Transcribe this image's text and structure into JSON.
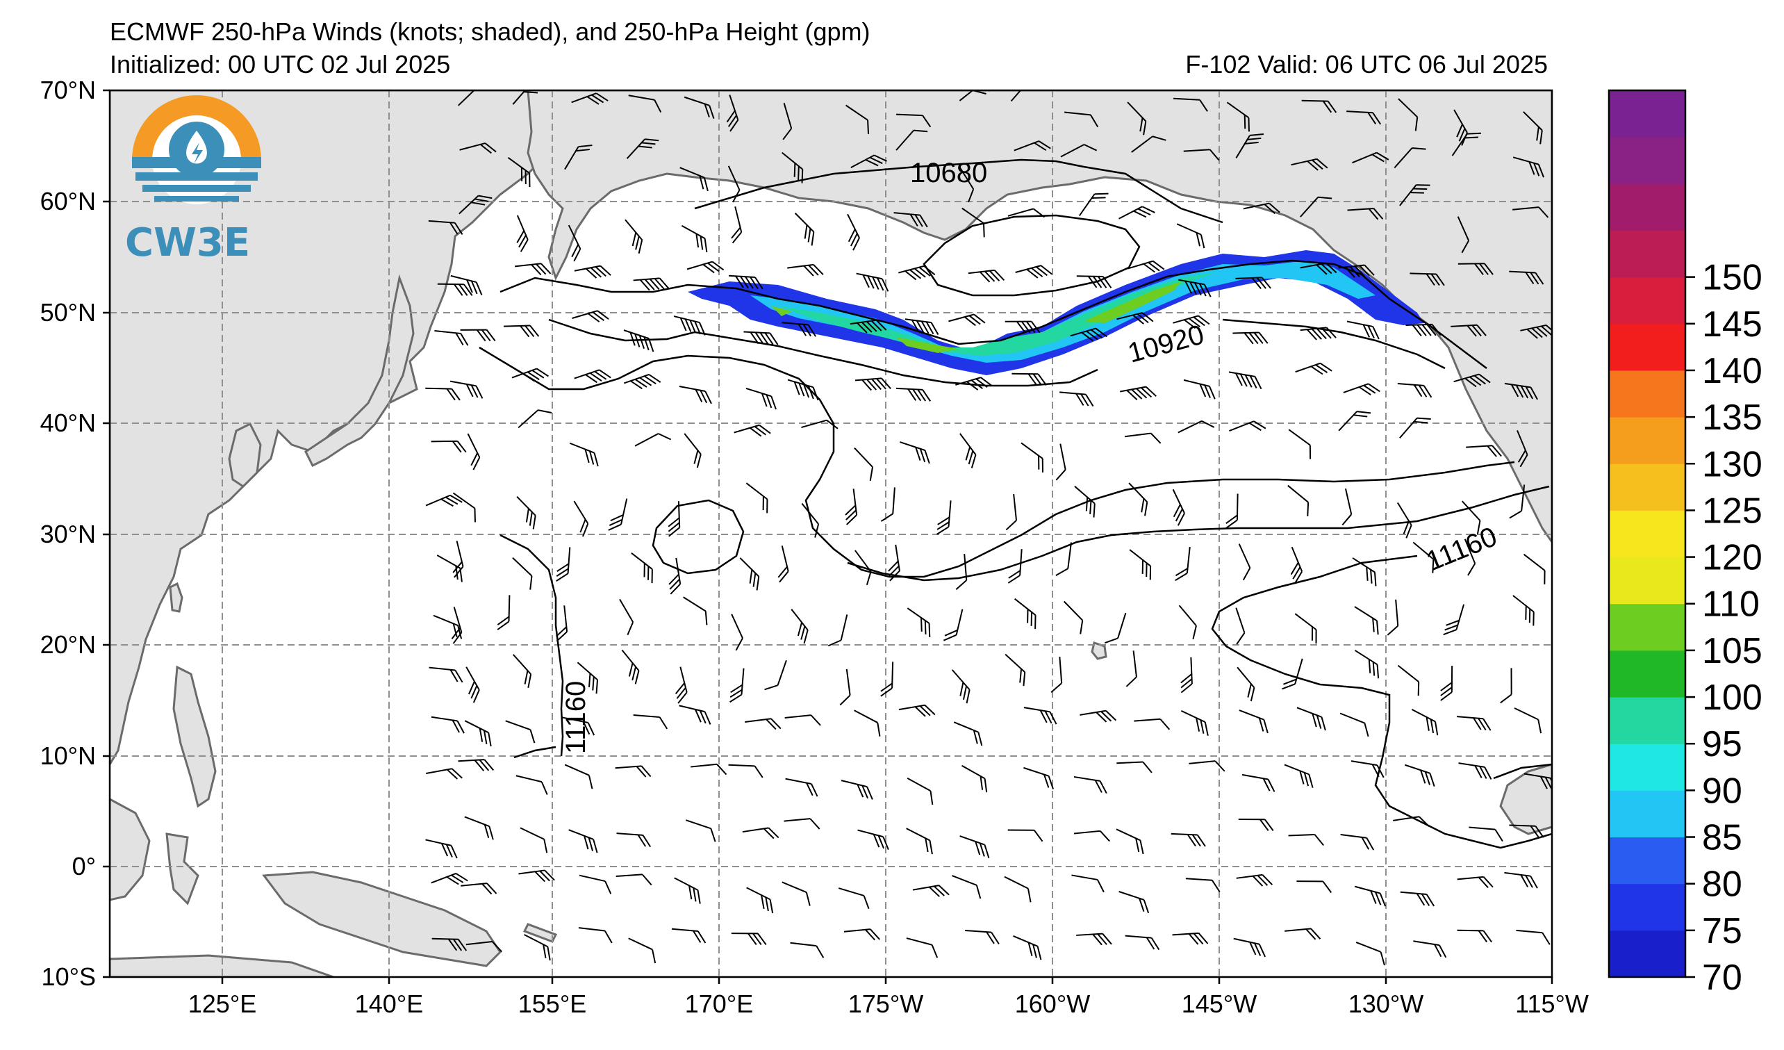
{
  "header": {
    "title": "ECMWF 250-hPa Winds (knots; shaded), and 250-hPa Height (gpm)",
    "initialized": "Initialized: 00 UTC 02 Jul 2025",
    "valid": "F-102  Valid: 06 UTC 06 Jul 2025"
  },
  "logo": {
    "text": "CW3E",
    "icon": "water-drop-logo-icon"
  },
  "axes": {
    "lat_labels": [
      "70°N",
      "60°N",
      "50°N",
      "40°N",
      "30°N",
      "20°N",
      "10°N",
      "0°",
      "10°S"
    ],
    "lon_labels": [
      "125°E",
      "140°E",
      "155°E",
      "170°E",
      "175°W",
      "160°W",
      "145°W",
      "130°W",
      "115°W"
    ],
    "lat_range": [
      -10,
      70
    ],
    "lon_range_deg_east": [
      110,
      245
    ],
    "gridlines": true
  },
  "contour_labels": [
    "10680",
    "10920",
    "11160",
    "11160"
  ],
  "colorbar": {
    "label_values": [
      "70",
      "75",
      "80",
      "85",
      "90",
      "95",
      "100",
      "105",
      "110",
      "120",
      "125",
      "130",
      "135",
      "140",
      "145",
      "150"
    ],
    "colors": [
      "#1a1fcc",
      "#2034e8",
      "#2a5cf2",
      "#21c6f5",
      "#1fe7e2",
      "#22d8a0",
      "#21b827",
      "#6dcd20",
      "#e8e81d",
      "#f7e51d",
      "#f5c01d",
      "#f59e1d",
      "#f5761d",
      "#f21d1d",
      "#d81d3d",
      "#bd1d55",
      "#a11d6c",
      "#8a2185",
      "#7b2293"
    ]
  },
  "colors": {
    "land": "#e2e2e2",
    "coast": "#6b6b6b",
    "grid": "#8f8f8f",
    "jet_outer": "#2034e8",
    "jet_mid": "#21c6f5",
    "jet_core": "#22d8a0",
    "jet_max": "#6dcd20"
  }
}
